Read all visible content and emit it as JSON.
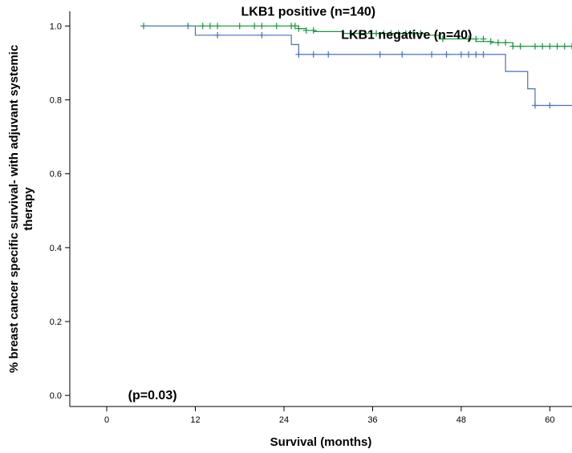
{
  "chart_data": {
    "type": "line",
    "subtype": "kaplan-meier",
    "xlabel": "Survival (months)",
    "ylabel_lines": [
      "% breast cancer specific survival- with adjuvant systemic",
      "therapy"
    ],
    "xlim": [
      -5,
      63
    ],
    "ylim": [
      -0.03,
      1.04
    ],
    "xticks": [
      0,
      12,
      24,
      36,
      48,
      60
    ],
    "xtick_labels": [
      "0",
      "12",
      "24",
      "36",
      "48",
      "60"
    ],
    "yticks": [
      0.0,
      0.2,
      0.4,
      0.6,
      0.8,
      1.0
    ],
    "ytick_labels": [
      "0.0",
      "0.2",
      "0.4",
      "0.6",
      "0.8",
      "1.0"
    ],
    "grid": false,
    "annotations": [
      {
        "text": "LKB1 positive (n=140)",
        "x": 27.3,
        "y": 1.028
      },
      {
        "text": "LKB1 negative (n=40)",
        "x": 40.6,
        "y": 0.965
      },
      {
        "text": "(p=0.03)",
        "x": 6.2,
        "y": -0.01
      }
    ],
    "series": [
      {
        "name": "LKB1 positive (n=140)",
        "color": "#1a9641",
        "steps": [
          [
            5,
            1.0
          ],
          [
            26,
            0.993
          ],
          [
            27,
            0.988
          ],
          [
            28,
            0.985
          ],
          [
            32,
            0.98
          ],
          [
            43,
            0.975
          ],
          [
            45,
            0.965
          ],
          [
            50,
            0.958
          ],
          [
            52,
            0.955
          ],
          [
            55,
            0.945
          ],
          [
            63,
            0.945
          ]
        ],
        "censored": [
          [
            5,
            1.0
          ],
          [
            11,
            1.0
          ],
          [
            13,
            1.0
          ],
          [
            14,
            1.0
          ],
          [
            15,
            1.0
          ],
          [
            18,
            1.0
          ],
          [
            20,
            1.0
          ],
          [
            21,
            1.0
          ],
          [
            23,
            1.0
          ],
          [
            25,
            1.0
          ],
          [
            25.5,
            1.0
          ],
          [
            26,
            0.993
          ],
          [
            27,
            0.988
          ],
          [
            28,
            0.988
          ],
          [
            33,
            0.98
          ],
          [
            35,
            0.98
          ],
          [
            36.5,
            0.98
          ],
          [
            37.5,
            0.98
          ],
          [
            38.5,
            0.98
          ],
          [
            39.5,
            0.98
          ],
          [
            40.5,
            0.98
          ],
          [
            41.5,
            0.98
          ],
          [
            42.5,
            0.98
          ],
          [
            45.5,
            0.965
          ],
          [
            49,
            0.965
          ],
          [
            50,
            0.965
          ],
          [
            51,
            0.965
          ],
          [
            52,
            0.958
          ],
          [
            53,
            0.955
          ],
          [
            54,
            0.955
          ],
          [
            55,
            0.945
          ],
          [
            56,
            0.945
          ],
          [
            58,
            0.945
          ],
          [
            59,
            0.945
          ],
          [
            60,
            0.945
          ],
          [
            61,
            0.945
          ],
          [
            62,
            0.945
          ],
          [
            63,
            0.945
          ]
        ]
      },
      {
        "name": "LKB1 negative (n=40)",
        "color": "#4a6fc0",
        "steps": [
          [
            5,
            1.0
          ],
          [
            12,
            0.975
          ],
          [
            25,
            0.95
          ],
          [
            26,
            0.923
          ],
          [
            54,
            0.877
          ],
          [
            57,
            0.83
          ],
          [
            58,
            0.785
          ],
          [
            63,
            0.785
          ]
        ],
        "censored": [
          [
            15,
            0.975
          ],
          [
            21,
            0.975
          ],
          [
            26,
            0.923
          ],
          [
            28,
            0.923
          ],
          [
            30,
            0.923
          ],
          [
            37,
            0.923
          ],
          [
            40,
            0.923
          ],
          [
            44,
            0.923
          ],
          [
            46,
            0.923
          ],
          [
            48,
            0.923
          ],
          [
            49,
            0.923
          ],
          [
            50,
            0.923
          ],
          [
            51,
            0.923
          ],
          [
            58,
            0.785
          ],
          [
            60,
            0.785
          ]
        ]
      }
    ]
  }
}
